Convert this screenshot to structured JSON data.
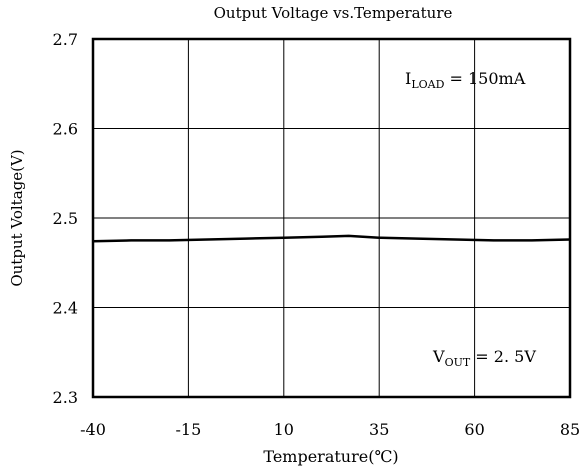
{
  "chart_data": {
    "type": "line",
    "title": "Output Voltage vs.Temperature",
    "xlabel": "Temperature(℃)",
    "ylabel": "Output Voltage(V)",
    "xlim": [
      -40,
      85
    ],
    "ylim": [
      2.3,
      2.7
    ],
    "x_ticks": [
      "-40",
      "-15",
      "10",
      "35",
      "60",
      "85"
    ],
    "x_tick_values": [
      -40,
      -15,
      10,
      35,
      60,
      85
    ],
    "y_ticks": [
      "2.7",
      "2.6",
      "2.5",
      "2.4",
      "2.3"
    ],
    "y_tick_values": [
      2.7,
      2.6,
      2.5,
      2.4,
      2.3
    ],
    "grid": true,
    "series": [
      {
        "x": [
          -40,
          -30,
          -20,
          -10,
          0,
          10,
          20,
          27,
          35,
          45,
          55,
          65,
          75,
          85
        ],
        "values": [
          2.474,
          2.475,
          2.475,
          2.476,
          2.477,
          2.478,
          2.479,
          2.48,
          2.478,
          2.477,
          2.476,
          2.475,
          2.475,
          2.476
        ]
      }
    ],
    "annotations": [
      {
        "base": "I",
        "sub": "LOAD",
        "rest": " = 150mA"
      },
      {
        "base": "V",
        "sub": "OUT",
        "rest": " = 2. 5V"
      }
    ]
  }
}
